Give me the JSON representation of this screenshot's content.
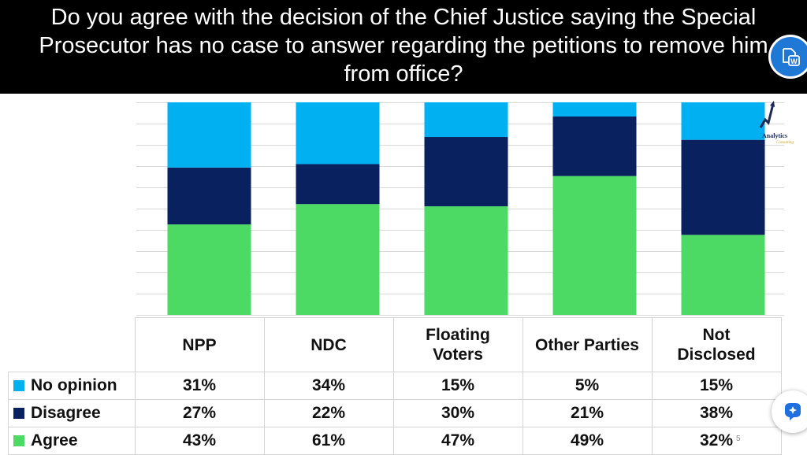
{
  "title_lines": [
    "Do you agree with the decision of the Chief Justice saying the Special",
    "Prosecutor has no case to answer regarding the petitions to remove him",
    "from office?"
  ],
  "colors": {
    "agree": "#4cd964",
    "disagree": "#0a2160",
    "no_opinion": "#00b0f0",
    "grid": "#d9d9d9"
  },
  "chart_data": {
    "type": "bar",
    "stacked": true,
    "normalized_100": true,
    "title": "Do you agree with the decision of the Chief Justice saying the Special Prosecutor has no case to answer regarding the petitions to remove him from office?",
    "categories": [
      "NPP",
      "NDC",
      "Floating Voters",
      "Other Parties",
      "Not Disclosed"
    ],
    "category_lines": [
      [
        "NPP"
      ],
      [
        "NDC"
      ],
      [
        "Floating",
        "Voters"
      ],
      [
        "Other Parties"
      ],
      [
        "Not",
        "Disclosed"
      ]
    ],
    "series": [
      {
        "name": "No opinion",
        "values": [
          31,
          34,
          15,
          5,
          15
        ],
        "labels": [
          "31%",
          "34%",
          "15%",
          "5%",
          "15%"
        ]
      },
      {
        "name": "Disagree",
        "values": [
          27,
          22,
          30,
          21,
          38
        ],
        "labels": [
          "27%",
          "22%",
          "30%",
          "21%",
          "38%"
        ]
      },
      {
        "name": "Agree",
        "values": [
          43,
          61,
          47,
          49,
          32
        ],
        "labels": [
          "43%",
          "61%",
          "47%",
          "49%",
          "32%"
        ]
      }
    ],
    "grid": true,
    "legend": "data-table-below"
  },
  "watermark": {
    "name": "Analytics",
    "tagline": "Consulting"
  },
  "icons": {
    "word": "word-export-icon",
    "copilot": "copilot-icon"
  },
  "page_number": "5"
}
